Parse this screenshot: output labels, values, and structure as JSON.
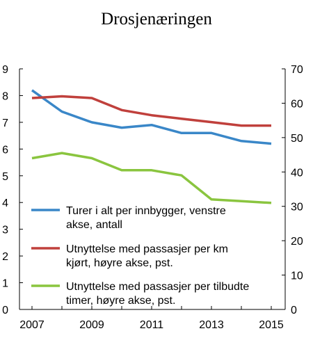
{
  "chart_data": {
    "type": "line",
    "title": "Drosjenæringen",
    "x_tick_labels": [
      "2007",
      "2009",
      "2011",
      "2013",
      "2015"
    ],
    "left_axis": {
      "ylim": [
        0,
        9
      ],
      "ticks": [
        "0",
        "1",
        "2",
        "3",
        "4",
        "5",
        "6",
        "7",
        "8",
        "9"
      ]
    },
    "right_axis": {
      "ylim": [
        0,
        70
      ],
      "ticks": [
        "0",
        "10",
        "20",
        "30",
        "40",
        "50",
        "60",
        "70"
      ]
    },
    "x": [
      2007,
      2008,
      2009,
      2010,
      2011,
      2012,
      2013,
      2014,
      2015
    ],
    "series": [
      {
        "name_lines": [
          "Turer i alt per innbygger, venstre",
          "akse, antall"
        ],
        "axis": "left",
        "color": "#3a87c8",
        "values": [
          8.2,
          7.4,
          7.0,
          6.8,
          6.9,
          6.6,
          6.6,
          6.3,
          6.2
        ]
      },
      {
        "name_lines": [
          "Utnyttelse med passasjer per km",
          "kjørt, høyre akse, pst."
        ],
        "axis": "right",
        "color": "#c0403c",
        "values": [
          61.5,
          62.0,
          61.5,
          58.0,
          56.5,
          55.5,
          54.5,
          53.5,
          53.5
        ]
      },
      {
        "name_lines": [
          "Utnyttelse med passasjer per tilbudte",
          "timer, høyre akse, pst."
        ],
        "axis": "right",
        "color": "#8ac53f",
        "values": [
          44.0,
          45.5,
          44.0,
          40.5,
          40.5,
          39.0,
          32.0,
          31.5,
          31.0
        ]
      }
    ],
    "grid": false,
    "legend_position": "bottom-left inside plot"
  }
}
